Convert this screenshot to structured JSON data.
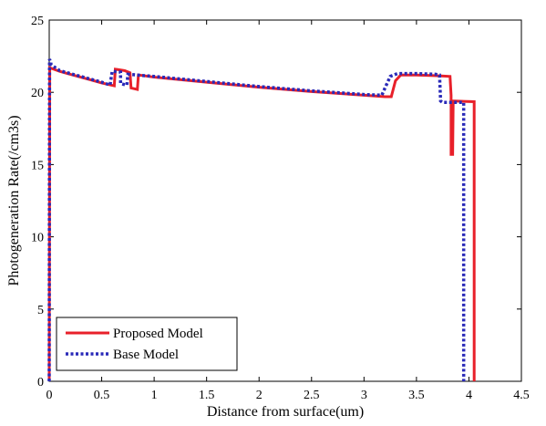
{
  "chart_data": {
    "type": "line",
    "xlabel": "Distance from surface(um)",
    "ylabel": "Photogeneration Rate(/cm3s)",
    "xlim": [
      0,
      4.5
    ],
    "ylim": [
      0,
      25
    ],
    "xticks": [
      0,
      0.5,
      1,
      1.5,
      2,
      2.5,
      3,
      3.5,
      4,
      4.5
    ],
    "yticks": [
      0,
      5,
      10,
      15,
      20,
      25
    ],
    "xtick_labels": [
      "0",
      "0.5",
      "1",
      "1.5",
      "2",
      "2.5",
      "3",
      "3.5",
      "4",
      "4.5"
    ],
    "ytick_labels": [
      "0",
      "5",
      "10",
      "15",
      "20",
      "25"
    ],
    "grid": false,
    "legend_position": "bottom-left",
    "series": [
      {
        "name": "Proposed Model",
        "color": "#e8202a",
        "style": "solid",
        "points": [
          [
            0,
            0
          ],
          [
            0.005,
            21.7
          ],
          [
            0.1,
            21.45
          ],
          [
            0.2,
            21.25
          ],
          [
            0.3,
            21.05
          ],
          [
            0.4,
            20.85
          ],
          [
            0.5,
            20.65
          ],
          [
            0.62,
            20.45
          ],
          [
            0.63,
            21.6
          ],
          [
            0.72,
            21.5
          ],
          [
            0.77,
            21.35
          ],
          [
            0.78,
            20.3
          ],
          [
            0.84,
            20.2
          ],
          [
            0.85,
            21.2
          ],
          [
            1.0,
            21.05
          ],
          [
            1.5,
            20.7
          ],
          [
            2.0,
            20.35
          ],
          [
            2.5,
            20.05
          ],
          [
            3.0,
            19.8
          ],
          [
            3.2,
            19.7
          ],
          [
            3.26,
            19.7
          ],
          [
            3.3,
            20.8
          ],
          [
            3.35,
            21.2
          ],
          [
            3.5,
            21.2
          ],
          [
            3.7,
            21.15
          ],
          [
            3.82,
            21.1
          ],
          [
            3.83,
            19.8
          ],
          [
            3.83,
            15.7
          ],
          [
            3.845,
            15.7
          ],
          [
            3.85,
            19.4
          ],
          [
            4.05,
            19.35
          ],
          [
            4.05,
            0
          ]
        ]
      },
      {
        "name": "Base Model",
        "color": "#2a2ab8",
        "style": "dotted",
        "points": [
          [
            0,
            0
          ],
          [
            0.003,
            22.3
          ],
          [
            0.02,
            21.9
          ],
          [
            0.1,
            21.5
          ],
          [
            0.2,
            21.3
          ],
          [
            0.3,
            21.1
          ],
          [
            0.4,
            20.9
          ],
          [
            0.5,
            20.7
          ],
          [
            0.58,
            20.5
          ],
          [
            0.6,
            21.45
          ],
          [
            0.68,
            21.4
          ],
          [
            0.68,
            20.6
          ],
          [
            0.74,
            20.5
          ],
          [
            0.75,
            21.25
          ],
          [
            1.0,
            21.1
          ],
          [
            1.5,
            20.75
          ],
          [
            2.0,
            20.4
          ],
          [
            2.5,
            20.1
          ],
          [
            3.0,
            19.85
          ],
          [
            3.17,
            19.8
          ],
          [
            3.2,
            20.3
          ],
          [
            3.25,
            21.1
          ],
          [
            3.32,
            21.3
          ],
          [
            3.5,
            21.3
          ],
          [
            3.68,
            21.25
          ],
          [
            3.72,
            21.2
          ],
          [
            3.73,
            19.4
          ],
          [
            3.75,
            19.3
          ],
          [
            3.95,
            19.3
          ],
          [
            3.95,
            0
          ]
        ]
      }
    ]
  }
}
